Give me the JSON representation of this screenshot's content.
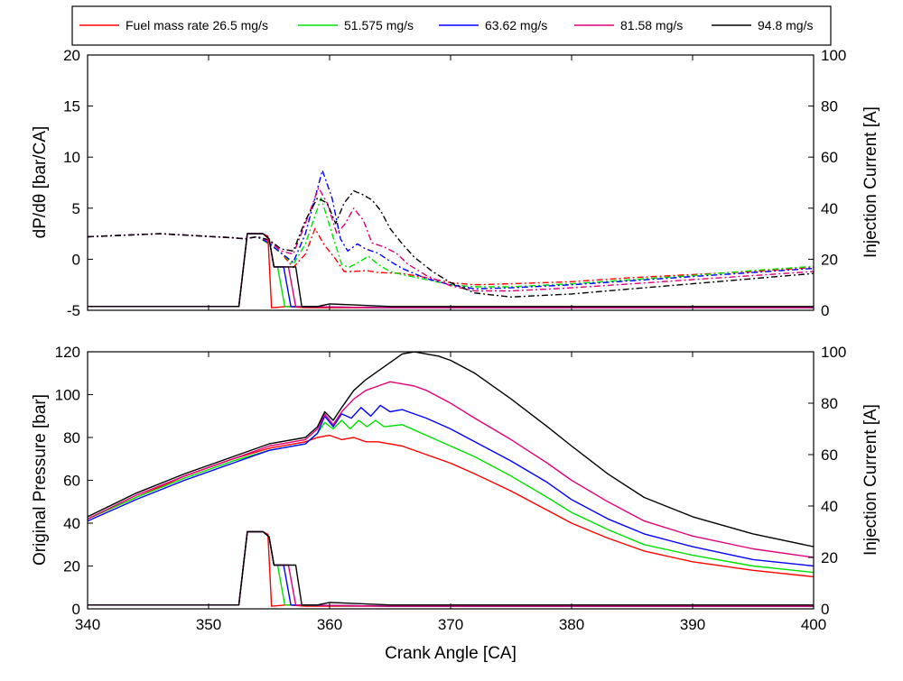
{
  "chart_data": [
    {
      "type": "line",
      "panel": "top",
      "xlabel": "",
      "ylabel": "dP/dθ [bar/CA]",
      "y2label": "Injection Current [A]",
      "xlim": [
        340,
        400
      ],
      "ylim": [
        -5,
        20
      ],
      "y2lim": [
        0,
        100
      ],
      "xticks": [
        340,
        350,
        360,
        370,
        380,
        390,
        400
      ],
      "yticks": [
        -5,
        0,
        5,
        10,
        15,
        20
      ],
      "y2ticks": [
        0,
        20,
        40,
        60,
        80,
        100
      ],
      "grid": false,
      "legend": {
        "placement": "top",
        "entries": [
          {
            "label": "Fuel mass rate 26.5 mg/s",
            "color": "#ff0000"
          },
          {
            "label": "51.575 mg/s",
            "color": "#00e000"
          },
          {
            "label": "63.62 mg/s",
            "color": "#0000ff"
          },
          {
            "label": "81.58 mg/s",
            "color": "#e0007a"
          },
          {
            "label": "94.8 mg/s",
            "color": "#000000"
          }
        ]
      },
      "series": [
        {
          "name": "Fuel mass rate 26.5 mg/s",
          "color": "#ff0000",
          "style": "dashdot",
          "axis": "left",
          "x": [
            340,
            346,
            352,
            353,
            354,
            355,
            356,
            357,
            358,
            358.8,
            359.5,
            360.5,
            361.2,
            362,
            363,
            364,
            366,
            368,
            370,
            372,
            375,
            380,
            385,
            390,
            395,
            400
          ],
          "y": [
            2.2,
            2.5,
            2.1,
            2.0,
            2.2,
            1.5,
            0.6,
            -0.8,
            0.5,
            3.0,
            1.5,
            0.0,
            -1.2,
            -1.2,
            -1.1,
            -1.3,
            -1.4,
            -1.8,
            -2.3,
            -2.5,
            -2.4,
            -2.2,
            -1.8,
            -1.5,
            -1.2,
            -0.8
          ]
        },
        {
          "name": "51.575 mg/s",
          "color": "#00e000",
          "style": "dashdot",
          "axis": "left",
          "x": [
            340,
            346,
            352,
            353,
            354,
            355,
            356,
            357,
            358,
            359.3,
            360.2,
            361,
            361.6,
            362.4,
            363.2,
            364,
            365,
            366,
            368,
            370,
            372,
            375,
            380,
            385,
            390,
            395,
            400
          ],
          "y": [
            2.2,
            2.5,
            2.1,
            2.0,
            2.2,
            1.5,
            0.6,
            -0.5,
            1.5,
            6.0,
            2.5,
            -0.5,
            -0.8,
            -0.3,
            0.3,
            -0.5,
            -1.2,
            -1.5,
            -2.0,
            -2.5,
            -2.7,
            -2.7,
            -2.4,
            -2.0,
            -1.6,
            -1.1,
            -0.7
          ]
        },
        {
          "name": "63.62 mg/s",
          "color": "#0000ff",
          "style": "dashdot",
          "axis": "left",
          "x": [
            340,
            346,
            352,
            353,
            354,
            355,
            356,
            357,
            358,
            359.4,
            360.2,
            360.9,
            361.5,
            362.3,
            363,
            364,
            365,
            366,
            368,
            370,
            372,
            375,
            380,
            385,
            390,
            395,
            400
          ],
          "y": [
            2.2,
            2.5,
            2.1,
            2.0,
            2.2,
            1.6,
            0.6,
            -0.3,
            2.5,
            8.7,
            6.0,
            2.0,
            0.8,
            1.5,
            1.0,
            0.6,
            -0.2,
            -0.9,
            -1.9,
            -2.5,
            -2.9,
            -2.8,
            -2.5,
            -2.1,
            -1.7,
            -1.3,
            -0.9
          ]
        },
        {
          "name": "81.58 mg/s",
          "color": "#e0007a",
          "style": "dashdot",
          "axis": "left",
          "x": [
            340,
            346,
            352,
            353,
            354,
            355,
            356,
            357,
            358,
            359.1,
            359.8,
            360.6,
            361.3,
            362,
            362.8,
            363.5,
            364.5,
            365.5,
            366.5,
            368,
            370,
            372,
            375,
            380,
            385,
            390,
            395,
            400
          ],
          "y": [
            2.2,
            2.5,
            2.1,
            2.0,
            2.2,
            1.8,
            0.8,
            0.5,
            3.5,
            7.0,
            5.5,
            2.5,
            3.5,
            5.0,
            3.8,
            1.6,
            1.2,
            0.6,
            -0.5,
            -1.6,
            -2.6,
            -3.1,
            -3.1,
            -2.8,
            -2.4,
            -2.0,
            -1.6,
            -1.2
          ]
        },
        {
          "name": "94.8 mg/s",
          "color": "#000000",
          "style": "dashdot",
          "axis": "left",
          "x": [
            340,
            346,
            352,
            353,
            354,
            355,
            356,
            357,
            358,
            359,
            359.8,
            360.5,
            361.2,
            362,
            362.8,
            363.5,
            364.2,
            365,
            366,
            367,
            368.5,
            370,
            372,
            375,
            380,
            385,
            390,
            395,
            400
          ],
          "y": [
            2.2,
            2.5,
            2.1,
            2.0,
            2.2,
            1.9,
            1.0,
            0.8,
            3.8,
            6.0,
            5.5,
            3.5,
            5.5,
            6.7,
            6.3,
            5.8,
            4.8,
            3.0,
            1.5,
            0.2,
            -1.2,
            -2.3,
            -3.3,
            -3.7,
            -3.4,
            -2.9,
            -2.4,
            -1.9,
            -1.4
          ]
        },
        {
          "name": "Fuel mass rate 26.5 mg/s",
          "color": "#ff0000",
          "style": "solid",
          "axis": "right",
          "x": [
            340,
            352.5,
            353.2,
            354.5,
            354.9,
            355.2,
            356.5,
            358,
            365,
            400
          ],
          "y": [
            1.5,
            1.5,
            30,
            30,
            29,
            1,
            1.5,
            1,
            1,
            1
          ]
        },
        {
          "name": "51.575 mg/s",
          "color": "#00e000",
          "style": "solid",
          "axis": "right",
          "x": [
            340,
            352.5,
            353.2,
            354.5,
            355,
            355.4,
            355.7,
            356.3,
            365,
            400
          ],
          "y": [
            1.5,
            1.5,
            30,
            30,
            28,
            17,
            17,
            1.5,
            1,
            1
          ]
        },
        {
          "name": "63.62 mg/s",
          "color": "#0000ff",
          "style": "solid",
          "axis": "right",
          "x": [
            340,
            352.5,
            353.2,
            354.5,
            355,
            355.4,
            356.2,
            356.8,
            365,
            400
          ],
          "y": [
            1.5,
            1.5,
            30,
            30,
            28,
            17,
            17,
            1.5,
            1,
            1
          ]
        },
        {
          "name": "81.58 mg/s",
          "color": "#e0007a",
          "style": "solid",
          "axis": "right",
          "x": [
            340,
            352.5,
            353.2,
            354.5,
            355,
            355.4,
            356.6,
            357.2,
            365,
            400
          ],
          "y": [
            1.5,
            1.5,
            30,
            30,
            28,
            17,
            17,
            1.5,
            1,
            1
          ]
        },
        {
          "name": "94.8 mg/s",
          "color": "#000000",
          "style": "solid",
          "axis": "right",
          "x": [
            340,
            352.5,
            353.2,
            354.5,
            355,
            355.4,
            357.2,
            357.7,
            359,
            360,
            365,
            400
          ],
          "y": [
            1.5,
            1.5,
            30,
            30,
            28,
            17,
            17,
            1.5,
            1.5,
            2.5,
            1.5,
            1.5
          ]
        }
      ]
    },
    {
      "type": "line",
      "panel": "bottom",
      "xlabel": "Crank Angle [CA]",
      "ylabel": "Original Pressure [bar]",
      "y2label": "Injection Current [A]",
      "xlim": [
        340,
        400
      ],
      "ylim": [
        0,
        120
      ],
      "y2lim": [
        0,
        100
      ],
      "xticks": [
        340,
        350,
        360,
        370,
        380,
        390,
        400
      ],
      "yticks": [
        0,
        20,
        40,
        60,
        80,
        100,
        120
      ],
      "y2ticks": [
        0,
        20,
        40,
        60,
        80,
        100
      ],
      "grid": false,
      "series": [
        {
          "name": "Fuel mass rate 26.5 mg/s",
          "color": "#ff0000",
          "style": "solid",
          "axis": "left",
          "x": [
            340,
            344,
            348,
            352,
            355,
            358,
            359,
            360,
            361,
            362,
            363,
            364,
            366,
            368,
            370,
            372,
            375,
            378,
            380,
            383,
            386,
            390,
            395,
            400
          ],
          "y": [
            42,
            52,
            62,
            70,
            75,
            78,
            80,
            81,
            79,
            80,
            78,
            78,
            76,
            72,
            68,
            63,
            55,
            46,
            40,
            33,
            27,
            22,
            18,
            15
          ]
        },
        {
          "name": "51.575 mg/s",
          "color": "#00e000",
          "style": "solid",
          "axis": "left",
          "x": [
            340,
            344,
            348,
            352,
            355,
            358,
            359,
            359.6,
            360.3,
            361,
            361.7,
            362.4,
            363.1,
            363.8,
            364.5,
            366,
            368,
            370,
            372,
            375,
            378,
            380,
            383,
            386,
            390,
            395,
            400
          ],
          "y": [
            42,
            52,
            61,
            69,
            74,
            77,
            82,
            87,
            84,
            88,
            84,
            88,
            85,
            88,
            85,
            86,
            81,
            76,
            71,
            62,
            52,
            45,
            37,
            30,
            25,
            20,
            17
          ]
        },
        {
          "name": "63.62 mg/s",
          "color": "#0000ff",
          "style": "solid",
          "axis": "left",
          "x": [
            340,
            344,
            348,
            352,
            355,
            358,
            359,
            359.6,
            360.3,
            361,
            361.8,
            362.6,
            363.4,
            364.2,
            365,
            366,
            368,
            370,
            372,
            375,
            378,
            380,
            383,
            386,
            390,
            395,
            400
          ],
          "y": [
            41,
            51,
            60,
            68,
            74,
            77,
            82,
            90,
            85,
            91,
            89,
            94,
            90,
            95,
            92,
            93,
            89,
            84,
            78,
            69,
            59,
            51,
            42,
            35,
            29,
            23,
            20
          ]
        },
        {
          "name": "81.58 mg/s",
          "color": "#e0007a",
          "style": "solid",
          "axis": "left",
          "x": [
            340,
            344,
            348,
            352,
            355,
            358,
            359,
            359.6,
            360.3,
            361,
            362,
            363,
            364,
            365,
            366,
            367,
            368,
            370,
            372,
            375,
            378,
            380,
            383,
            386,
            390,
            395,
            400
          ],
          "y": [
            42,
            53,
            62,
            70,
            76,
            79,
            84,
            91,
            86,
            92,
            98,
            102,
            104,
            106,
            105,
            104,
            102,
            96,
            89,
            79,
            68,
            60,
            50,
            41,
            34,
            28,
            24
          ]
        },
        {
          "name": "94.8 mg/s",
          "color": "#000000",
          "style": "solid",
          "axis": "left",
          "x": [
            340,
            344,
            348,
            352,
            355,
            358,
            359,
            359.6,
            360.3,
            361,
            362,
            363,
            364,
            365,
            366,
            367,
            368,
            369,
            370,
            372,
            375,
            378,
            380,
            383,
            386,
            390,
            395,
            400
          ],
          "y": [
            43,
            54,
            63,
            71,
            77,
            80,
            85,
            92,
            88,
            94,
            102,
            107,
            111,
            115,
            119,
            120,
            119,
            118,
            116,
            110,
            98,
            85,
            76,
            63,
            52,
            43,
            35,
            29
          ]
        },
        {
          "name": "Fuel mass rate 26.5 mg/s",
          "color": "#ff0000",
          "style": "solid",
          "axis": "right",
          "x": [
            340,
            352.5,
            353.2,
            354.5,
            354.9,
            355.2,
            356.5,
            358,
            365,
            400
          ],
          "y": [
            1.5,
            1.5,
            30,
            30,
            29,
            1,
            1.5,
            1,
            1,
            1
          ]
        },
        {
          "name": "51.575 mg/s",
          "color": "#00e000",
          "style": "solid",
          "axis": "right",
          "x": [
            340,
            352.5,
            353.2,
            354.5,
            355,
            355.4,
            355.7,
            356.3,
            365,
            400
          ],
          "y": [
            1.5,
            1.5,
            30,
            30,
            28,
            17,
            17,
            1.5,
            1,
            1
          ]
        },
        {
          "name": "63.62 mg/s",
          "color": "#0000ff",
          "style": "solid",
          "axis": "right",
          "x": [
            340,
            352.5,
            353.2,
            354.5,
            355,
            355.4,
            356.2,
            356.8,
            365,
            400
          ],
          "y": [
            1.5,
            1.5,
            30,
            30,
            28,
            17,
            17,
            1.5,
            1,
            1
          ]
        },
        {
          "name": "81.58 mg/s",
          "color": "#e0007a",
          "style": "solid",
          "axis": "right",
          "x": [
            340,
            352.5,
            353.2,
            354.5,
            355,
            355.4,
            356.6,
            357.2,
            365,
            400
          ],
          "y": [
            1.5,
            1.5,
            30,
            30,
            28,
            17,
            17,
            1.5,
            1,
            1
          ]
        },
        {
          "name": "94.8 mg/s",
          "color": "#000000",
          "style": "solid",
          "axis": "right",
          "x": [
            340,
            352.5,
            353.2,
            354.5,
            355,
            355.4,
            357.2,
            357.7,
            359,
            360,
            365,
            400
          ],
          "y": [
            1.5,
            1.5,
            30,
            30,
            28,
            17,
            17,
            1.5,
            1.5,
            2.5,
            1.5,
            1.5
          ]
        }
      ]
    }
  ]
}
